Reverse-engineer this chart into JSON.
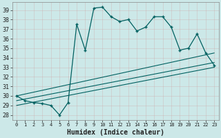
{
  "xlabel": "Humidex (Indice chaleur)",
  "bg_color": "#cce8e8",
  "grid_color": "#b0cccc",
  "line_color": "#006060",
  "xlim": [
    -0.5,
    23.5
  ],
  "ylim": [
    27.5,
    39.8
  ],
  "xticks": [
    0,
    1,
    2,
    3,
    4,
    5,
    6,
    7,
    8,
    9,
    10,
    11,
    12,
    13,
    14,
    15,
    16,
    17,
    18,
    19,
    20,
    21,
    22,
    23
  ],
  "yticks": [
    28,
    29,
    30,
    31,
    32,
    33,
    34,
    35,
    36,
    37,
    38,
    39
  ],
  "main_line_x": [
    0,
    1,
    2,
    3,
    4,
    5,
    6,
    7,
    8,
    9,
    10,
    11,
    12,
    13,
    14,
    15,
    16,
    17,
    18,
    19,
    20,
    21,
    22,
    23
  ],
  "main_line_y": [
    30.0,
    29.5,
    29.3,
    29.2,
    29.0,
    28.0,
    29.3,
    37.5,
    34.8,
    39.2,
    39.3,
    38.3,
    37.8,
    38.0,
    36.8,
    37.2,
    38.3,
    38.3,
    37.2,
    34.8,
    35.0,
    36.5,
    34.5,
    33.2
  ],
  "line2_x": [
    0,
    23
  ],
  "line2_y": [
    30.0,
    34.5
  ],
  "line3_x": [
    0,
    23
  ],
  "line3_y": [
    29.5,
    33.5
  ],
  "line4_x": [
    0,
    23
  ],
  "line4_y": [
    29.0,
    33.0
  ]
}
